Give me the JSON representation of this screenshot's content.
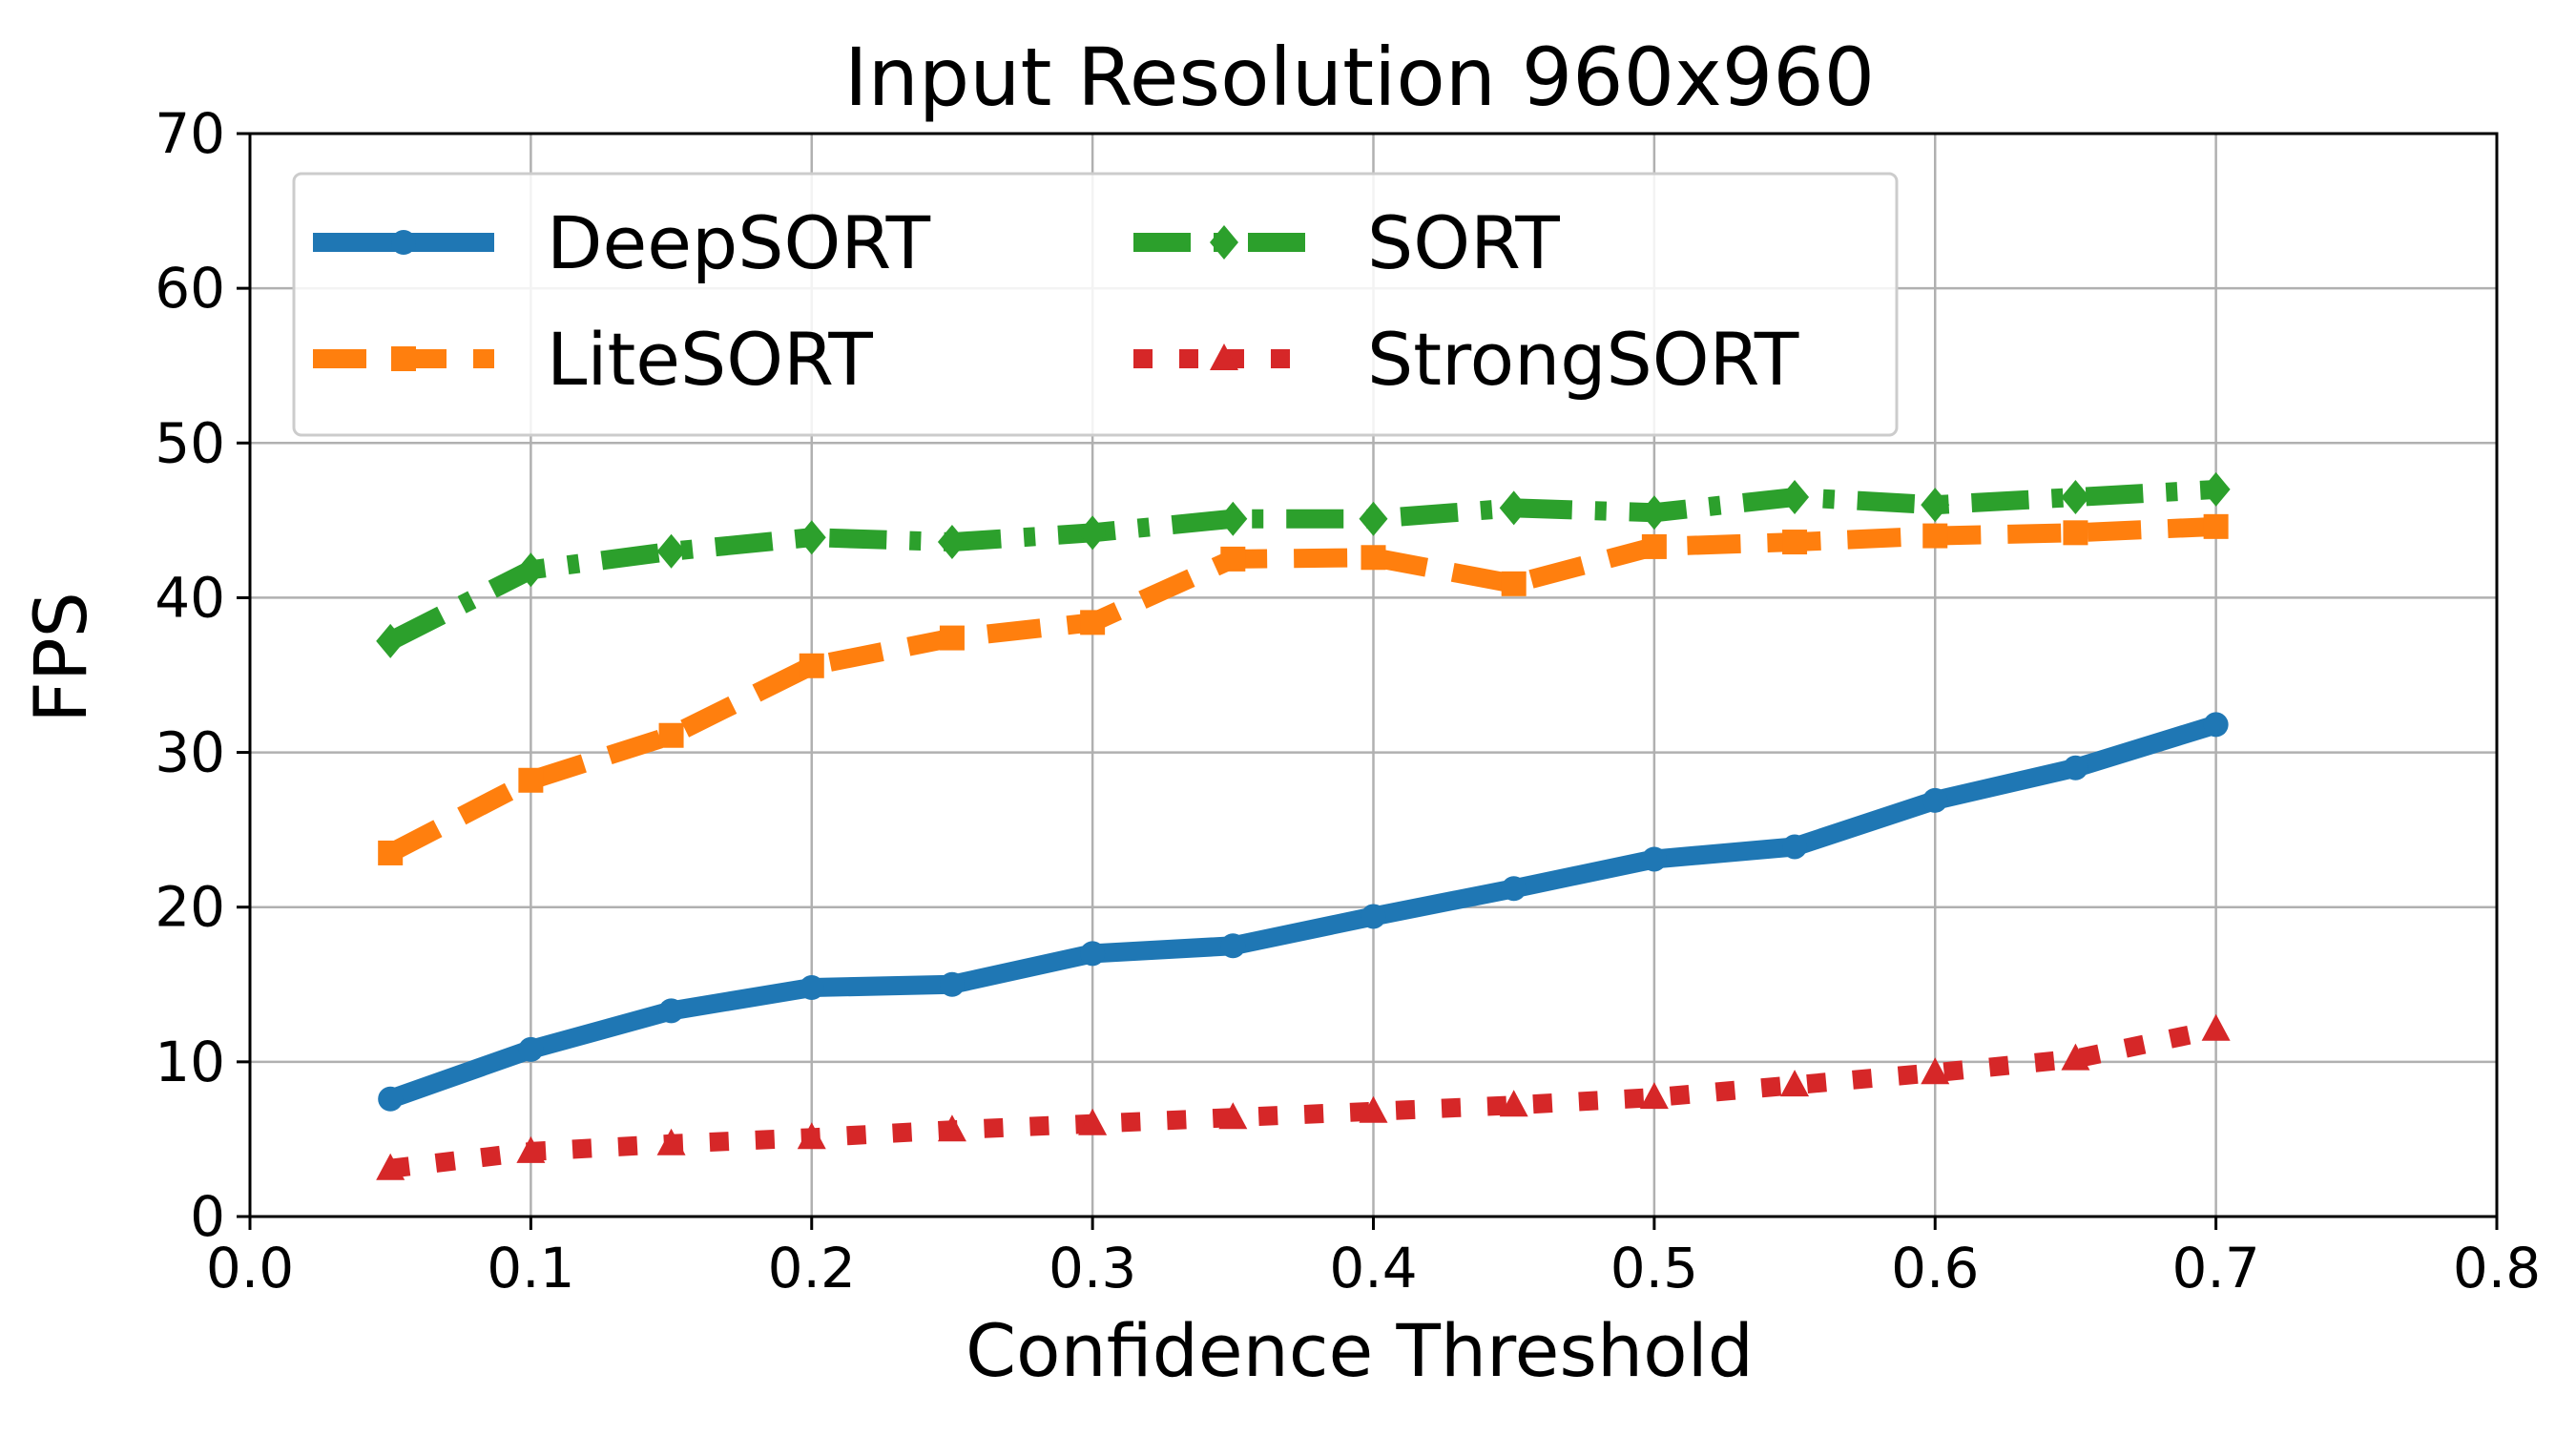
{
  "chart_data": {
    "type": "line",
    "title": "Input Resolution 960x960",
    "xlabel": "Confidence Threshold",
    "ylabel": "FPS",
    "xlim": [
      0.0,
      0.8
    ],
    "ylim": [
      0,
      70
    ],
    "xticks": [
      "0.0",
      "0.1",
      "0.2",
      "0.3",
      "0.4",
      "0.5",
      "0.6",
      "0.7",
      "0.8"
    ],
    "yticks": [
      "0",
      "10",
      "20",
      "30",
      "40",
      "50",
      "60",
      "70"
    ],
    "grid": true,
    "legend": {
      "placement": "top-left",
      "columns": 2
    },
    "x": [
      0.05,
      0.1,
      0.15,
      0.2,
      0.25,
      0.3,
      0.35,
      0.4,
      0.45,
      0.5,
      0.55,
      0.6,
      0.65,
      0.7
    ],
    "series": [
      {
        "name": "DeepSORT",
        "color": "#1f77b4",
        "line_style": "solid",
        "marker": "circle",
        "values": [
          7.6,
          10.8,
          13.3,
          14.8,
          15.0,
          17.0,
          17.5,
          19.4,
          21.2,
          23.1,
          23.9,
          26.9,
          29.0,
          31.8
        ]
      },
      {
        "name": "SORT",
        "color": "#2ca02c",
        "line_style": "dashdot",
        "marker": "diamond",
        "values": [
          37.2,
          41.8,
          43.0,
          43.9,
          43.6,
          44.2,
          45.1,
          45.1,
          45.8,
          45.5,
          46.5,
          46.0,
          46.5,
          47.0
        ]
      },
      {
        "name": "LiteSORT",
        "color": "#ff7f0e",
        "line_style": "dashed",
        "marker": "square",
        "values": [
          23.5,
          28.2,
          31.1,
          35.6,
          37.4,
          38.4,
          42.5,
          42.6,
          40.9,
          43.3,
          43.6,
          44.0,
          44.2,
          44.6
        ]
      },
      {
        "name": "StrongSORT",
        "color": "#d62728",
        "line_style": "dotted",
        "marker": "triangle",
        "values": [
          3.1,
          4.2,
          4.7,
          5.1,
          5.6,
          6.0,
          6.4,
          6.8,
          7.2,
          7.7,
          8.5,
          9.3,
          10.2,
          12.1
        ]
      }
    ]
  }
}
